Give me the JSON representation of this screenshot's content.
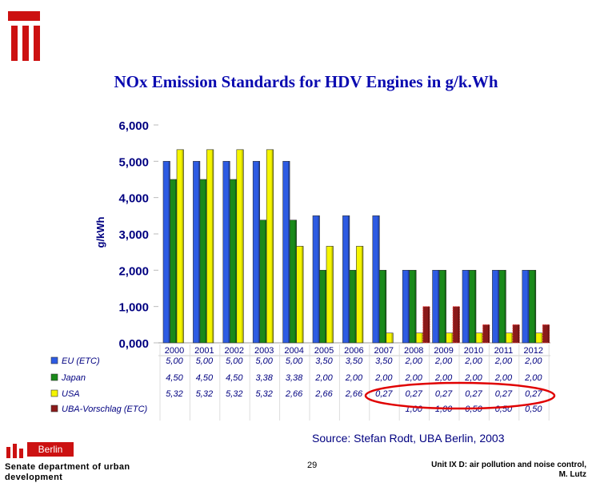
{
  "title": "NOx Emission Standards for HDV Engines in g/k.Wh",
  "source": "Source: Stefan Rodt, UBA Berlin, 2003",
  "logo_text": "Berlin",
  "footer": {
    "left": "Senate department of urban development",
    "page": "29",
    "right_line1": "Unit IX D: air pollution and noise control,",
    "right_line2": "M. Lutz"
  },
  "colors": {
    "red_block": "#cc1111",
    "eu": "#2d5be3",
    "japan": "#1a8a1a",
    "usa": "#f5f500",
    "uba": "#8b1a1a",
    "highlight": "#e00000",
    "title": "#0a0ab0"
  },
  "chart_data": {
    "type": "bar",
    "title": "NOx Emission Standards for HDV Engines in g/k.Wh",
    "ylabel": "g/kWh",
    "xlabel": "",
    "ylim": [
      0,
      6
    ],
    "yticks": [
      "0,000",
      "1,000",
      "2,000",
      "3,000",
      "4,000",
      "5,000",
      "6,000"
    ],
    "categories": [
      "2000",
      "2001",
      "2002",
      "2003",
      "2004",
      "2005",
      "2006",
      "2007",
      "2008",
      "2009",
      "2010",
      "2011",
      "2012"
    ],
    "series": [
      {
        "name": "EU (ETC)",
        "color": "#2d5be3",
        "values": [
          5.0,
          5.0,
          5.0,
          5.0,
          5.0,
          3.5,
          3.5,
          3.5,
          2.0,
          2.0,
          2.0,
          2.0,
          2.0
        ],
        "labels": [
          "5,00",
          "5,00",
          "5,00",
          "5,00",
          "5,00",
          "3,50",
          "3,50",
          "3,50",
          "2,00",
          "2,00",
          "2,00",
          "2,00",
          "2,00"
        ]
      },
      {
        "name": "Japan",
        "color": "#1a8a1a",
        "values": [
          4.5,
          4.5,
          4.5,
          3.38,
          3.38,
          2.0,
          2.0,
          2.0,
          2.0,
          2.0,
          2.0,
          2.0,
          2.0
        ],
        "labels": [
          "4,50",
          "4,50",
          "4,50",
          "3,38",
          "3,38",
          "2,00",
          "2,00",
          "2,00",
          "2,00",
          "2,00",
          "2,00",
          "2,00",
          "2,00"
        ]
      },
      {
        "name": "USA",
        "color": "#f5f500",
        "values": [
          5.32,
          5.32,
          5.32,
          5.32,
          2.66,
          2.66,
          2.66,
          0.27,
          0.27,
          0.27,
          0.27,
          0.27,
          0.27
        ],
        "labels": [
          "5,32",
          "5,32",
          "5,32",
          "5,32",
          "2,66",
          "2,66",
          "2,66",
          "0,27",
          "0,27",
          "0,27",
          "0,27",
          "0,27",
          "0,27"
        ]
      },
      {
        "name": "UBA-Vorschlag (ETC)",
        "color": "#8b1a1a",
        "values": [
          null,
          null,
          null,
          null,
          null,
          null,
          null,
          null,
          1.0,
          1.0,
          0.5,
          0.5,
          0.5
        ],
        "labels": [
          "",
          "",
          "",
          "",
          "",
          "",
          "",
          "",
          "1,00",
          "1,00",
          "0,50",
          "0,50",
          "0,50"
        ]
      }
    ],
    "grid": false,
    "legend": "table below chart",
    "annotation": "red ellipse around USA values 2007-2012"
  }
}
